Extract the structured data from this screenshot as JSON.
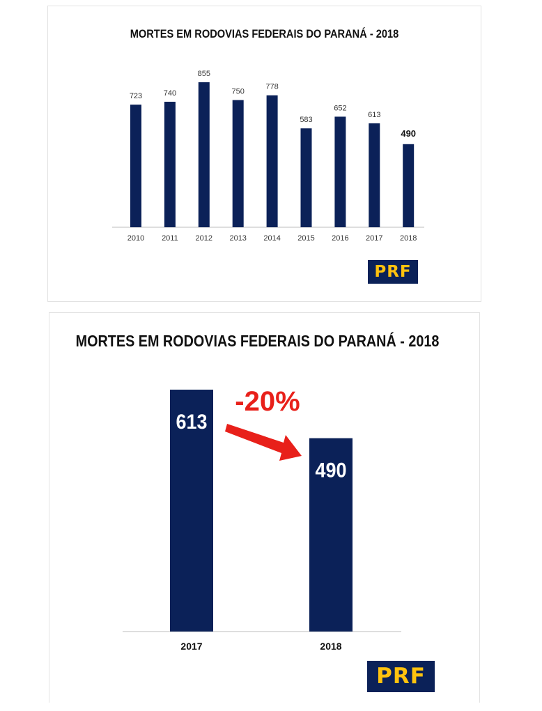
{
  "colors": {
    "bar": "#0b2158",
    "accent_red": "#e8201a",
    "logo_bg": "#0b2158",
    "logo_text": "#ffc20e"
  },
  "logo": {
    "text": "PRF"
  },
  "chart_data": [
    {
      "type": "bar",
      "title": "MORTES EM RODOVIAS FEDERAIS DO PARANÁ - 2018",
      "categories": [
        "2010",
        "2011",
        "2012",
        "2013",
        "2014",
        "2015",
        "2016",
        "2017",
        "2018"
      ],
      "values": [
        723,
        740,
        855,
        750,
        778,
        583,
        652,
        613,
        490
      ],
      "highlighted_category": "2018",
      "ylim": [
        0,
        855
      ],
      "grid": false
    },
    {
      "type": "bar",
      "title": "MORTES EM RODOVIAS FEDERAIS DO PARANÁ - 2018",
      "categories": [
        "2017",
        "2018"
      ],
      "values": [
        613,
        490
      ],
      "annotation": "-20%",
      "ylim": [
        0,
        613
      ],
      "grid": false
    }
  ]
}
